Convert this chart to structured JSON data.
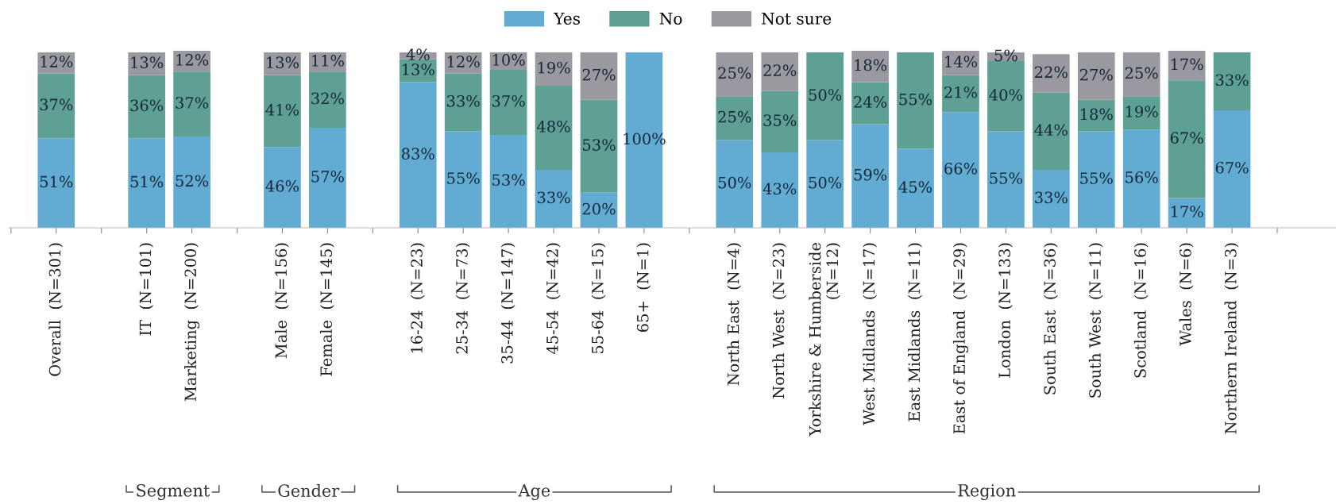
{
  "chart_data": {
    "type": "bar",
    "stacked": true,
    "categories": [
      null,
      "Overall  (N=301)",
      null,
      "IT  (N=101)",
      "Marketing  (N=200)",
      null,
      "Male  (N=156)",
      "Female  (N=145)",
      null,
      "16-24  (N=23)",
      "25-34  (N=73)",
      "35-44  (N=147)",
      "45-54  (N=42)",
      "55-64  (N=15)",
      "65+  (N=1)",
      null,
      "North East  (N=4)",
      "North West  (N=23)",
      "Yorkshire & Humberside\n(N=12)",
      "West Midlands  (N=17)",
      "East Midlands  (N=11)",
      "East of England  (N=29)",
      "London  (N=133)",
      "South East  (N=36)",
      "South West  (N=11)",
      "Scotland  (N=16)",
      "Wales  (N=6)",
      "Northern Ireland  (N=3)",
      null
    ],
    "series": [
      {
        "name": "Yes",
        "color": "#62acd4",
        "values": [
          null,
          51,
          null,
          51,
          52,
          null,
          46,
          57,
          null,
          83,
          55,
          53,
          33,
          20,
          100,
          null,
          50,
          43,
          50,
          59,
          45,
          66,
          55,
          33,
          55,
          56,
          17,
          67,
          null
        ],
        "value_labels": [
          null,
          "51%",
          null,
          "51%",
          "52%",
          null,
          "46%",
          "57%",
          null,
          "83%",
          "55%",
          "53%",
          "33%",
          "20%",
          "100%",
          null,
          "50%",
          "43%",
          "50%",
          "59%",
          "45%",
          "66%",
          "55%",
          "33%",
          "55%",
          "56%",
          "17%",
          "67%",
          null
        ]
      },
      {
        "name": "No",
        "color": "#5ea094",
        "values": [
          null,
          37,
          null,
          36,
          37,
          null,
          41,
          32,
          null,
          13,
          33,
          37,
          48,
          53,
          null,
          null,
          25,
          35,
          50,
          24,
          55,
          21,
          40,
          44,
          18,
          19,
          67,
          33,
          null
        ],
        "value_labels": [
          null,
          "37%",
          null,
          "36%",
          "37%",
          null,
          "41%",
          "32%",
          null,
          "13%",
          "33%",
          "37%",
          "48%",
          "53%",
          null,
          null,
          "25%",
          "35%",
          "50%",
          "24%",
          "55%",
          "21%",
          "40%",
          "44%",
          "18%",
          "19%",
          "67%",
          "33%",
          null
        ]
      },
      {
        "name": "Not sure",
        "color": "#9b99a0",
        "values": [
          null,
          12,
          null,
          13,
          12,
          null,
          13,
          11,
          null,
          4,
          12,
          10,
          19,
          27,
          null,
          null,
          25,
          22,
          null,
          18,
          null,
          14,
          5,
          22,
          27,
          25,
          17,
          null,
          null
        ],
        "value_labels": [
          null,
          "12%",
          null,
          "13%",
          "12%",
          null,
          "13%",
          "11%",
          null,
          "4%",
          "12%",
          "10%",
          "19%",
          "27%",
          null,
          null,
          "25%",
          "22%",
          null,
          "18%",
          null,
          "14%",
          "5%",
          "22%",
          "27%",
          "25%",
          "17%",
          null,
          null
        ]
      }
    ],
    "ylim": [
      0,
      101
    ],
    "tick_labels": "x",
    "legend": "top",
    "annotations": [
      "Segment",
      "Gender",
      "Age",
      "Region"
    ]
  }
}
